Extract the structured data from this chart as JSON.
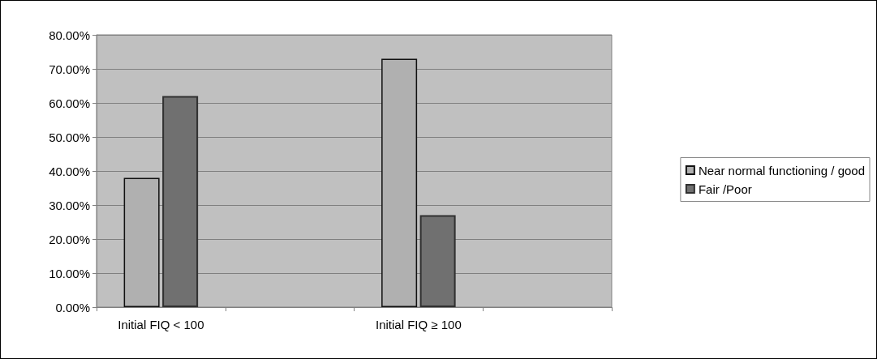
{
  "chart_data": {
    "type": "bar",
    "categories": [
      "Initial FIQ < 100",
      null,
      "Initial FIQ ≥ 100",
      null
    ],
    "series": [
      {
        "name": "Near normal functioning / good",
        "color": "#b0b0b0",
        "values": [
          38,
          null,
          73,
          null
        ]
      },
      {
        "name": "Fair /Poor",
        "color": "#707070",
        "values": [
          62,
          null,
          27,
          null
        ]
      }
    ],
    "ylim": [
      0,
      80
    ],
    "yticks": [
      {
        "value": 0,
        "label": "0.00%"
      },
      {
        "value": 10,
        "label": "10.00%"
      },
      {
        "value": 20,
        "label": "20.00%"
      },
      {
        "value": 30,
        "label": "30.00%"
      },
      {
        "value": 40,
        "label": "40.00%"
      },
      {
        "value": 50,
        "label": "50.00%"
      },
      {
        "value": 60,
        "label": "60.00%"
      },
      {
        "value": 70,
        "label": "70.00%"
      },
      {
        "value": 80,
        "label": "80.00%"
      }
    ],
    "grid": "y",
    "legend": "right"
  }
}
